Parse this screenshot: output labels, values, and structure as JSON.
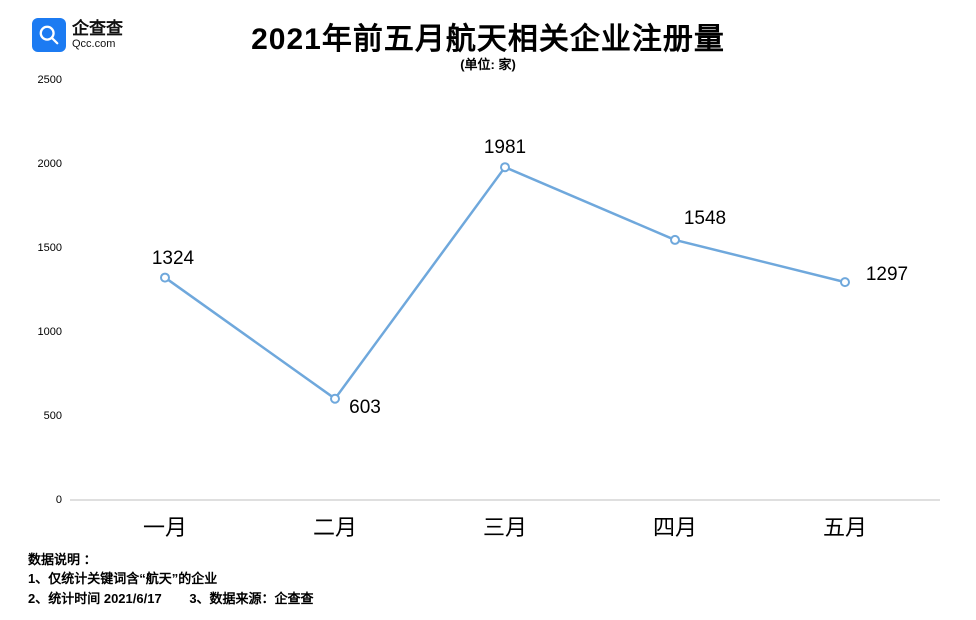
{
  "logo": {
    "cn": "企查查",
    "en": "Qcc.com"
  },
  "title": "2021年前五月航天相关企业注册量",
  "subtitle": "(单位: 家)",
  "chart": {
    "type": "line",
    "categories": [
      "一月",
      "二月",
      "三月",
      "四月",
      "五月"
    ],
    "values": [
      1324,
      603,
      1981,
      1548,
      1297
    ],
    "ylim": [
      0,
      2500
    ],
    "ytick_step": 500,
    "yticks": [
      0,
      500,
      1000,
      1500,
      2000,
      2500
    ],
    "line_color": "#6fa8dc",
    "line_width": 2.5,
    "marker_color": "#ffffff",
    "marker_border": "#6fa8dc",
    "marker_radius": 4,
    "baseline_color": "#bfbfbf",
    "background_color": "#ffffff",
    "data_label_fontsize": 19,
    "x_label_fontsize": 22,
    "y_label_fontsize": 11,
    "title_fontsize": 30
  },
  "footer": {
    "heading": "数据说明 ：",
    "note1": "1、仅统计关键词含“航天”的企业",
    "note2": "2、统计时间 2021/6/17",
    "note3": "3、数据来源：企查查"
  }
}
